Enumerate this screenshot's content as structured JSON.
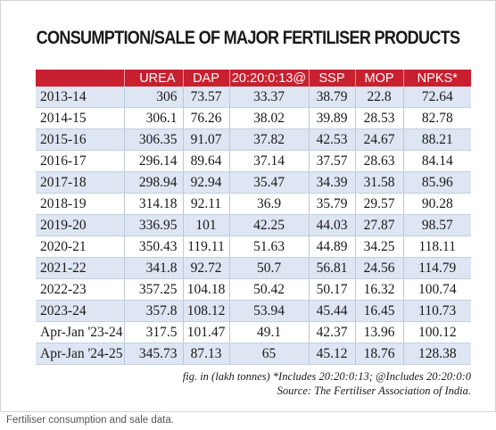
{
  "title": "CONSUMPTION/SALE OF MAJOR FERTILISER PRODUCTS",
  "table": {
    "headers": [
      "",
      "UREA",
      "DAP",
      "20:20:0:13@",
      "SSP",
      "MOP",
      "NPKS*"
    ],
    "rows": [
      [
        "2013-14",
        "306",
        "73.57",
        "33.37",
        "38.79",
        "22.8",
        "72.64"
      ],
      [
        "2014-15",
        "306.1",
        "76.26",
        "38.02",
        "39.89",
        "28.53",
        "82.78"
      ],
      [
        "2015-16",
        "306.35",
        "91.07",
        "37.82",
        "42.53",
        "24.67",
        "88.21"
      ],
      [
        "2016-17",
        "296.14",
        "89.64",
        "37.14",
        "37.57",
        "28.63",
        "84.14"
      ],
      [
        "2017-18",
        "298.94",
        "92.94",
        "35.47",
        "34.39",
        "31.58",
        "85.96"
      ],
      [
        "2018-19",
        "314.18",
        "92.11",
        "36.9",
        "35.79",
        "29.57",
        "90.28"
      ],
      [
        "2019-20",
        "336.95",
        "101",
        "42.25",
        "44.03",
        "27.87",
        "98.57"
      ],
      [
        "2020-21",
        "350.43",
        "119.11",
        "51.63",
        "44.89",
        "34.25",
        "118.11"
      ],
      [
        "2021-22",
        "341.8",
        "92.72",
        "50.7",
        "56.81",
        "24.56",
        "114.79"
      ],
      [
        "2022-23",
        "357.25",
        "104.18",
        "50.42",
        "50.17",
        "16.32",
        "100.74"
      ],
      [
        "2023-24",
        "357.8",
        "108.12",
        "53.94",
        "45.44",
        "16.45",
        "110.73"
      ],
      [
        "Apr-Jan '23-24",
        "317.5",
        "101.47",
        "49.1",
        "42.37",
        "13.96",
        "100.12"
      ],
      [
        "Apr-Jan '24-25",
        "345.73",
        "87.13",
        "65",
        "45.12",
        "18.76",
        "128.38"
      ]
    ]
  },
  "footnote": "fig. in (lakh tonnes) *Includes 20:20:0:13; @Includes 20:20:0:0",
  "source": "Source: The Fertiliser Association of India.",
  "caption": "Fertiliser consumption and sale data.",
  "colors": {
    "header_bg": "#c8202e",
    "row_shade": "#dde6f2"
  }
}
